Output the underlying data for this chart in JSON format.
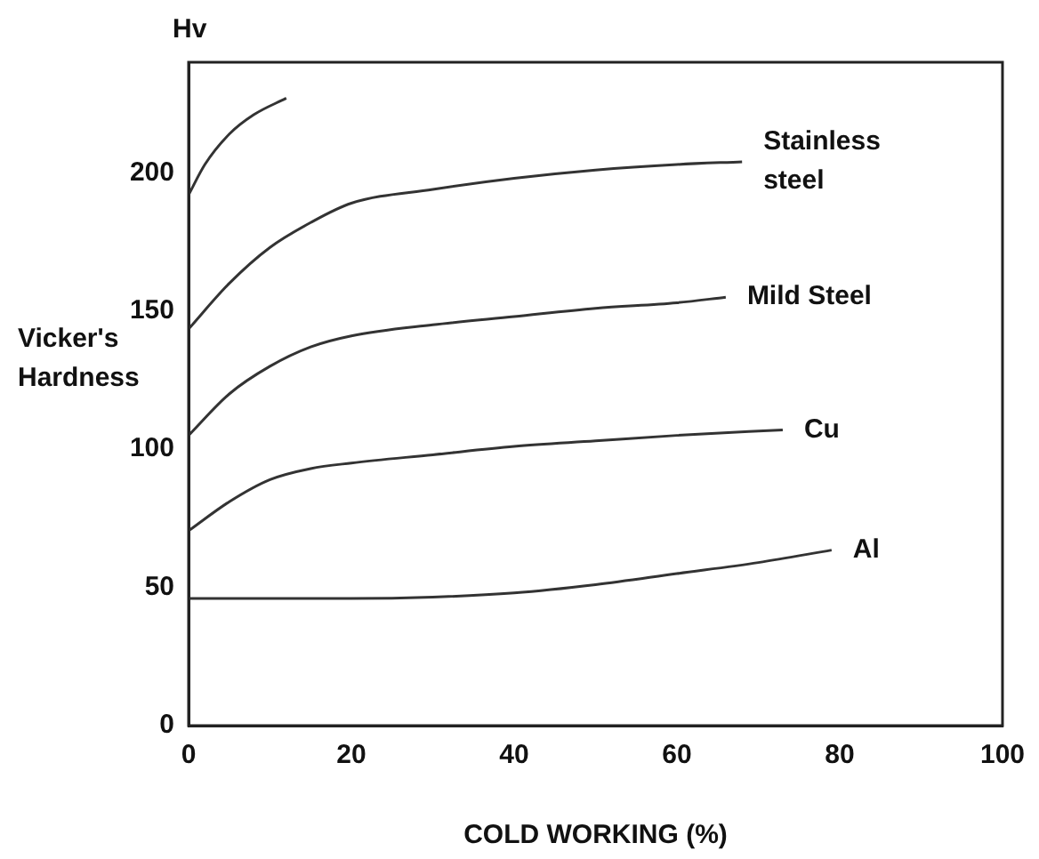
{
  "chart_data": {
    "type": "line",
    "xlabel": "COLD WORKING (%)",
    "ylabel": "Vicker's Hardness",
    "annotations": [
      "Hv"
    ],
    "xlim": [
      0,
      100
    ],
    "xticks": [
      0,
      20,
      40,
      60,
      80,
      100
    ],
    "ylim": [
      0,
      240
    ],
    "yticks": [
      0,
      50,
      100,
      150,
      200
    ],
    "grid": false,
    "legend": false,
    "marker": "none",
    "line_style": "solid",
    "series": [
      {
        "color": "#333333",
        "x": [
          0,
          2,
          5,
          8,
          12
        ],
        "values": [
          192,
          203,
          214,
          221,
          227
        ]
      },
      {
        "name": "Stainless steel",
        "color": "#333333",
        "x": [
          0,
          5,
          10,
          15,
          20,
          30,
          40,
          50,
          60,
          68
        ],
        "values": [
          143.5,
          160,
          173,
          182,
          189,
          194,
          198,
          201,
          203,
          204
        ]
      },
      {
        "name": "Mild Steel",
        "color": "#333333",
        "x": [
          0,
          5,
          10,
          15,
          20,
          30,
          40,
          50,
          60,
          66
        ],
        "values": [
          105,
          120,
          130,
          137,
          141,
          145,
          148,
          151,
          153,
          155
        ]
      },
      {
        "name": "Cu",
        "color": "#333333",
        "x": [
          0,
          5,
          10,
          15,
          20,
          30,
          40,
          50,
          60,
          73
        ],
        "values": [
          70.5,
          81,
          89,
          93,
          95,
          98,
          101,
          103,
          105,
          107
        ]
      },
      {
        "name": "Al",
        "color": "#333333",
        "x": [
          0,
          20,
          30,
          40,
          50,
          60,
          70,
          79
        ],
        "values": [
          46,
          46,
          46.5,
          48,
          51,
          55,
          59,
          63.5
        ]
      }
    ]
  }
}
